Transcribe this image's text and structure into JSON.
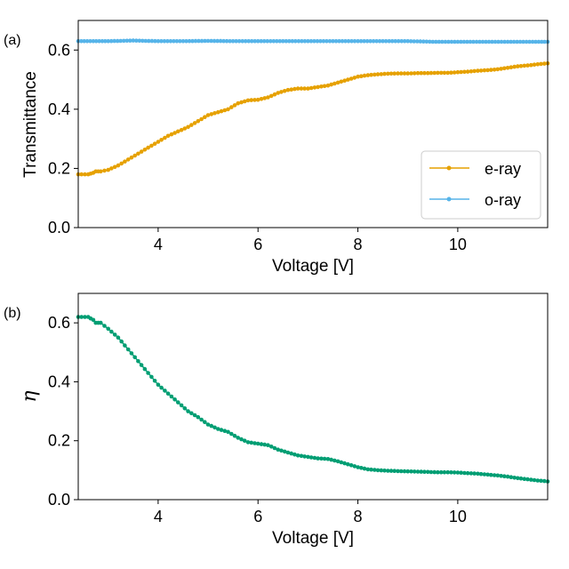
{
  "chart_data": [
    {
      "panel_label": "(a)",
      "type": "line",
      "xlabel": "Voltage [V]",
      "ylabel": "Transmittance",
      "xlim": [
        2.4,
        11.8
      ],
      "ylim": [
        0.0,
        0.7
      ],
      "xticks": [
        4,
        6,
        8,
        10
      ],
      "yticks": [
        0.0,
        0.2,
        0.4,
        0.6
      ],
      "ytick_labels": [
        "0.0",
        "0.2",
        "0.4",
        "0.6"
      ],
      "legend_position": "lower-right",
      "series": [
        {
          "name": "e-ray",
          "color": "#E6A100",
          "x": [
            2.4,
            2.6,
            2.7,
            2.75,
            2.85,
            3.0,
            3.2,
            3.4,
            3.6,
            3.8,
            4.0,
            4.2,
            4.4,
            4.6,
            4.8,
            5.0,
            5.2,
            5.4,
            5.6,
            5.8,
            6.0,
            6.2,
            6.4,
            6.6,
            6.8,
            7.0,
            7.2,
            7.4,
            7.6,
            7.8,
            8.0,
            8.2,
            8.4,
            8.6,
            8.8,
            9.0,
            9.2,
            9.4,
            9.6,
            9.8,
            10.0,
            10.2,
            10.4,
            10.6,
            10.8,
            11.0,
            11.2,
            11.4,
            11.6,
            11.8
          ],
          "y": [
            0.18,
            0.18,
            0.185,
            0.19,
            0.19,
            0.195,
            0.21,
            0.23,
            0.25,
            0.27,
            0.29,
            0.31,
            0.325,
            0.34,
            0.36,
            0.38,
            0.39,
            0.4,
            0.42,
            0.43,
            0.432,
            0.44,
            0.455,
            0.465,
            0.47,
            0.47,
            0.475,
            0.48,
            0.49,
            0.5,
            0.51,
            0.515,
            0.518,
            0.52,
            0.521,
            0.521,
            0.522,
            0.522,
            0.523,
            0.523,
            0.525,
            0.527,
            0.53,
            0.532,
            0.535,
            0.54,
            0.545,
            0.548,
            0.552,
            0.555
          ]
        },
        {
          "name": "o-ray",
          "color": "#56B4E9",
          "x": [
            2.4,
            3.0,
            3.5,
            4.0,
            4.5,
            5.0,
            5.5,
            6.0,
            6.5,
            7.0,
            7.5,
            8.0,
            8.5,
            9.0,
            9.5,
            10.0,
            10.5,
            11.0,
            11.5,
            11.8
          ],
          "y": [
            0.63,
            0.63,
            0.632,
            0.63,
            0.63,
            0.631,
            0.63,
            0.63,
            0.63,
            0.63,
            0.63,
            0.63,
            0.63,
            0.63,
            0.628,
            0.628,
            0.628,
            0.628,
            0.628,
            0.628
          ]
        }
      ]
    },
    {
      "panel_label": "(b)",
      "type": "line",
      "xlabel": "Voltage [V]",
      "ylabel": "η",
      "xlim": [
        2.4,
        11.8
      ],
      "ylim": [
        0.0,
        0.7
      ],
      "xticks": [
        4,
        6,
        8,
        10
      ],
      "yticks": [
        0.0,
        0.2,
        0.4,
        0.6
      ],
      "ytick_labels": [
        "0.0",
        "0.2",
        "0.4",
        "0.6"
      ],
      "series": [
        {
          "name": "eta",
          "color": "#009E73",
          "x": [
            2.4,
            2.6,
            2.7,
            2.75,
            2.85,
            3.0,
            3.2,
            3.4,
            3.6,
            3.8,
            4.0,
            4.2,
            4.4,
            4.6,
            4.8,
            5.0,
            5.2,
            5.4,
            5.6,
            5.8,
            6.0,
            6.2,
            6.4,
            6.6,
            6.8,
            7.0,
            7.2,
            7.4,
            7.6,
            7.8,
            8.0,
            8.2,
            8.4,
            8.6,
            8.8,
            9.0,
            9.2,
            9.4,
            9.6,
            9.8,
            10.0,
            10.2,
            10.4,
            10.6,
            10.8,
            11.0,
            11.2,
            11.4,
            11.6,
            11.8
          ],
          "y": [
            0.62,
            0.62,
            0.61,
            0.6,
            0.6,
            0.58,
            0.55,
            0.51,
            0.47,
            0.43,
            0.39,
            0.36,
            0.33,
            0.3,
            0.28,
            0.255,
            0.24,
            0.23,
            0.21,
            0.195,
            0.19,
            0.185,
            0.17,
            0.16,
            0.15,
            0.145,
            0.14,
            0.138,
            0.13,
            0.12,
            0.11,
            0.103,
            0.1,
            0.098,
            0.097,
            0.096,
            0.095,
            0.094,
            0.093,
            0.093,
            0.092,
            0.09,
            0.088,
            0.085,
            0.082,
            0.078,
            0.073,
            0.069,
            0.065,
            0.062
          ]
        }
      ]
    }
  ]
}
